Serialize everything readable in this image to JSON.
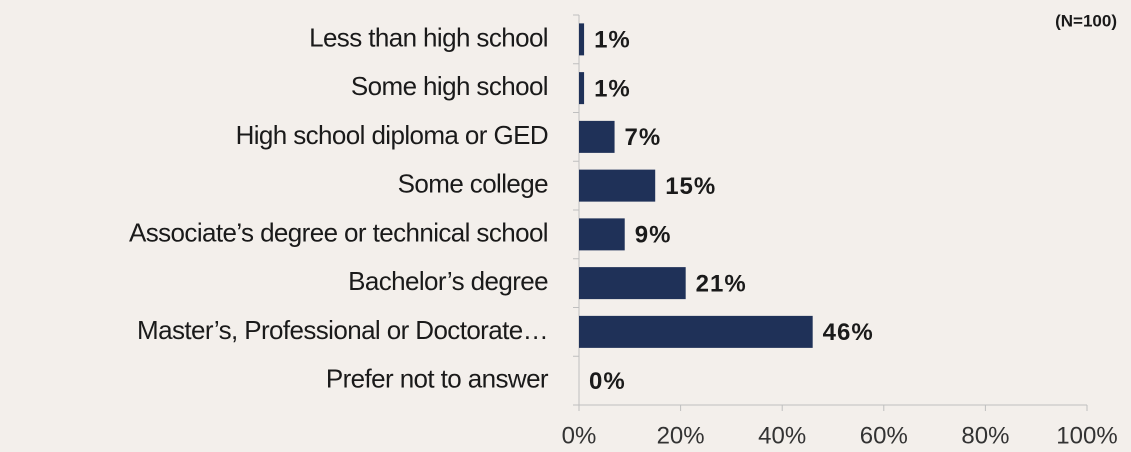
{
  "chart_data": {
    "type": "bar",
    "orientation": "horizontal",
    "annotation": "(N=100)",
    "categories": [
      "Less than high school",
      "Some high school",
      "High school diploma or GED",
      "Some college",
      "Associate’s degree or technical school",
      "Bachelor’s degree",
      "Master’s, Professional or Doctorate…",
      "Prefer not to answer"
    ],
    "values": [
      1,
      1,
      7,
      15,
      9,
      21,
      46,
      0
    ],
    "value_labels": [
      "1%",
      "1%",
      "7%",
      "15%",
      "9%",
      "21%",
      "46%",
      "0%"
    ],
    "color": "#1f3158",
    "xlim": [
      0,
      100
    ],
    "xticks": [
      {
        "value": 0,
        "label": "0%"
      },
      {
        "value": 20,
        "label": "20%"
      },
      {
        "value": 40,
        "label": "40%"
      },
      {
        "value": 60,
        "label": "60%"
      },
      {
        "value": 80,
        "label": "80%"
      },
      {
        "value": 100,
        "label": "100%"
      }
    ],
    "grid": false
  }
}
